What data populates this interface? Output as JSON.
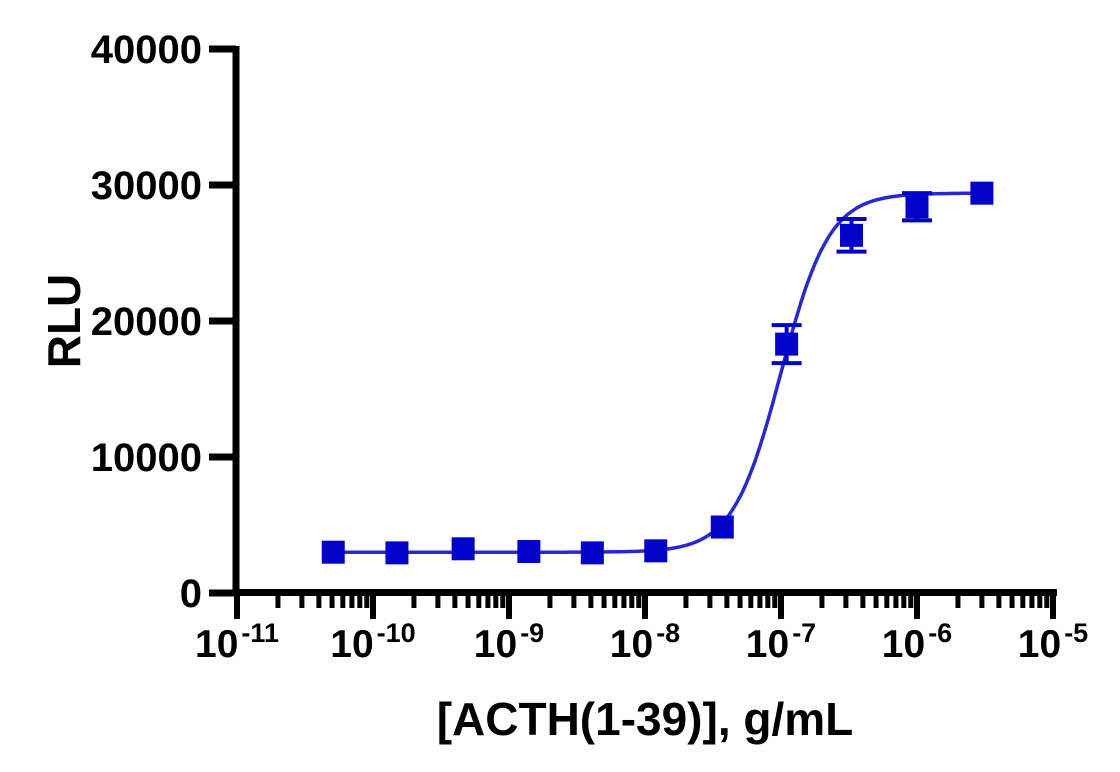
{
  "page": {
    "background": "#ffffff"
  },
  "chart_data": {
    "type": "scatter",
    "subtype": "sigmoidal-dose-response",
    "title": "",
    "xlabel": "[ACTH(1-39)], g/mL",
    "ylabel": "RLU",
    "x_scale": "log10",
    "xlim": [
      1e-11,
      1e-05
    ],
    "x_major_tick_exponents": [
      -11,
      -10,
      -9,
      -8,
      -7,
      -6,
      -5
    ],
    "x_tick_mantissa": "10",
    "x_minor_ticks": "log positions 2-9 within each decade",
    "ylim": [
      0,
      40000
    ],
    "y_ticks": [
      0,
      10000,
      20000,
      30000,
      40000
    ],
    "y_tick_labels": [
      "0",
      "10000",
      "20000",
      "30000",
      "40000"
    ],
    "grid": false,
    "legend": "none",
    "colors": {
      "marker": "#0202c8",
      "curve": "#2828cf",
      "error_bar": "#0202c8",
      "axis": "#000000",
      "text": "#000000"
    },
    "series": [
      {
        "name": "ACTH(1-39)",
        "marker": "square",
        "marker_size_px": 23,
        "points": [
          {
            "x": 5.1e-11,
            "y": 3000,
            "err": 0
          },
          {
            "x": 1.5e-10,
            "y": 2950,
            "err": 0
          },
          {
            "x": 4.6e-10,
            "y": 3250,
            "err": 0
          },
          {
            "x": 1.4e-09,
            "y": 3050,
            "err": 0
          },
          {
            "x": 4.1e-09,
            "y": 2950,
            "err": 0
          },
          {
            "x": 1.2e-08,
            "y": 3100,
            "err": 0
          },
          {
            "x": 3.7e-08,
            "y": 4850,
            "err": 0
          },
          {
            "x": 1.1e-07,
            "y": 18300,
            "err": 1400
          },
          {
            "x": 3.3e-07,
            "y": 26300,
            "err": 1200
          },
          {
            "x": 1e-06,
            "y": 28400,
            "err": 1000
          },
          {
            "x": 3e-06,
            "y": 29400,
            "err": 0
          }
        ]
      }
    ],
    "fit_curve": {
      "model": "4PL sigmoid",
      "bottom": 3000,
      "top": 29400,
      "ec50": 1e-07,
      "hill_slope": 2.45
    }
  }
}
